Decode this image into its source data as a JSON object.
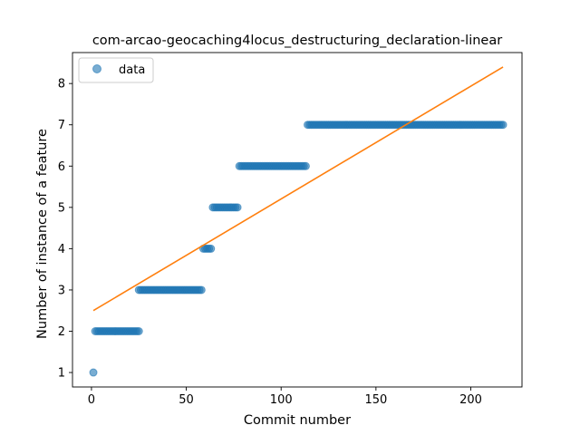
{
  "chart_data": {
    "type": "scatter",
    "title": "com-arcao-geocaching4locus_destructuring_declaration-linear",
    "xlabel": "Commit number",
    "ylabel": "Number of instance of a feature",
    "xlim": [
      -10,
      227
    ],
    "ylim": [
      0.65,
      8.75
    ],
    "xticks": [
      0,
      50,
      100,
      150,
      200
    ],
    "yticks": [
      1,
      2,
      3,
      4,
      5,
      6,
      7,
      8
    ],
    "legend": {
      "placement": "upper-left",
      "entries": [
        "data"
      ]
    },
    "colors": {
      "data": "#1f77b4",
      "fit": "#ff7f0e"
    },
    "series": [
      {
        "name": "data",
        "kind": "scatter",
        "segments": [
          {
            "x_start": 1,
            "x_end": 1,
            "y": 1
          },
          {
            "x_start": 2,
            "x_end": 25,
            "y": 2
          },
          {
            "x_start": 25,
            "x_end": 58,
            "y": 3
          },
          {
            "x_start": 59,
            "x_end": 63,
            "y": 4
          },
          {
            "x_start": 64,
            "x_end": 77,
            "y": 5
          },
          {
            "x_start": 78,
            "x_end": 113,
            "y": 6
          },
          {
            "x_start": 114,
            "x_end": 217,
            "y": 7
          }
        ]
      },
      {
        "kind": "line",
        "x": [
          1,
          217
        ],
        "y": [
          2.5,
          8.4
        ]
      }
    ]
  }
}
